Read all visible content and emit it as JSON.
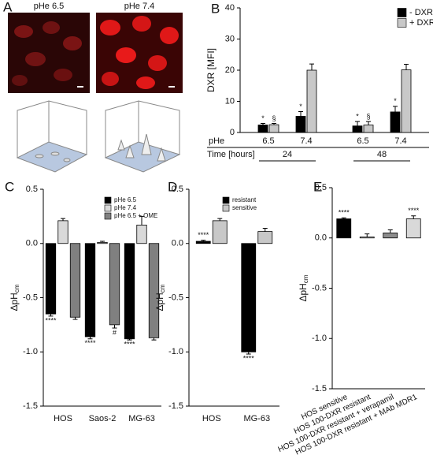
{
  "panel_a": {
    "panel": "A",
    "labels": [
      "pHe 6.5",
      "pHe 7.4"
    ]
  },
  "chart_data": [
    {
      "panel": "B",
      "type": "bar",
      "ylabel": "DXR [MFI]",
      "category_axis_label": "pHe",
      "groups_axis_label": "Time [hours]",
      "categories": [
        "6.5",
        "7.4",
        "6.5",
        "7.4"
      ],
      "groups": [
        "24",
        "48"
      ],
      "series": [
        {
          "name": "-  DXR",
          "color": "#000000",
          "values": [
            2.4,
            5.2,
            2.1,
            6.6
          ],
          "errors": [
            0.5,
            1.5,
            1.4,
            1.8
          ],
          "annotations": [
            "*",
            "*",
            "*",
            "*"
          ]
        },
        {
          "name": "+ DXR",
          "color": "#c8c8c8",
          "values": [
            2.5,
            20,
            2.4,
            20.1
          ],
          "errors": [
            0.4,
            2,
            1.1,
            1.8
          ],
          "annotations": [
            "§",
            null,
            "§",
            null
          ]
        }
      ],
      "ylim": [
        0,
        40
      ],
      "yticks": [
        0,
        10,
        20,
        30,
        40
      ],
      "legend": "upper right"
    },
    {
      "panel": "C",
      "type": "bar",
      "ylabel": "ΔpH",
      "ylabel_subscript": "cm",
      "categories": [
        "HOS",
        "Saos-2",
        "MG-63"
      ],
      "series": [
        {
          "name": "pHe 6.5",
          "color": "#000000",
          "values": [
            -0.65,
            -0.86,
            -0.88
          ],
          "errors": [
            0.02,
            0.02,
            0.01
          ],
          "annotations": [
            "****",
            "****",
            "****"
          ]
        },
        {
          "name": "pHe 7.4",
          "color": "#d9d9d9",
          "values": [
            0.21,
            0.01,
            0.17
          ],
          "errors": [
            0.02,
            0.01,
            0.08
          ]
        },
        {
          "name": "pHe 6.5 + OME",
          "color": "#808080",
          "values": [
            -0.68,
            -0.75,
            -0.87
          ],
          "errors": [
            0.02,
            0.03,
            0.02
          ],
          "annotations": [
            null,
            "#",
            null
          ]
        }
      ],
      "ylim": [
        -1.5,
        0.5
      ],
      "yticks": [
        -1.5,
        {
          "value": -1.0,
          "label": "-1.0"
        },
        -0.5,
        {
          "value": 0.0,
          "label": "0.0"
        },
        0.5
      ],
      "legend": "upper right"
    },
    {
      "panel": "D",
      "type": "bar",
      "ylabel": "ΔpH",
      "ylabel_subscript": "cm",
      "categories": [
        "HOS",
        "MG-63"
      ],
      "series": [
        {
          "name": "resistant",
          "color": "#000000",
          "values": [
            0.02,
            -1.0
          ],
          "errors": [
            0.01,
            0.02
          ],
          "annotations": [
            "****",
            "****"
          ]
        },
        {
          "name": "sensitive",
          "color": "#c8c8c8",
          "values": [
            0.21,
            0.11
          ],
          "errors": [
            0.02,
            0.03
          ]
        }
      ],
      "ylim": [
        -1.5,
        0.5
      ],
      "yticks": [
        -1.5,
        {
          "value": -1.0,
          "label": "-1.0"
        },
        -0.5,
        {
          "value": 0.0,
          "label": "0.0"
        },
        0.5
      ],
      "legend": "upper right"
    },
    {
      "panel": "E",
      "type": "bar",
      "ylabel": "ΔpH",
      "ylabel_subscript": "cm",
      "categories": [
        "HOS sensitive",
        "HOS 100-DXR resistant",
        "HOS 100-DXR resistant + verapamil",
        "HOS 100-DXR resistant + MAb MDR1"
      ],
      "values": [
        0.19,
        0.01,
        0.05,
        0.19
      ],
      "colors": [
        "#000000",
        "#ffffff",
        "#8c8c8c",
        "#d9d9d9"
      ],
      "errors": [
        0.01,
        0.03,
        0.03,
        0.03
      ],
      "annotations": [
        "****",
        null,
        null,
        "****"
      ],
      "ylim": [
        -1.5,
        0.5
      ],
      "yticks": [
        -1.5,
        {
          "value": -1.0,
          "label": "-1.0"
        },
        -0.5,
        {
          "value": 0.0,
          "label": "0.0"
        },
        0.5
      ]
    }
  ]
}
